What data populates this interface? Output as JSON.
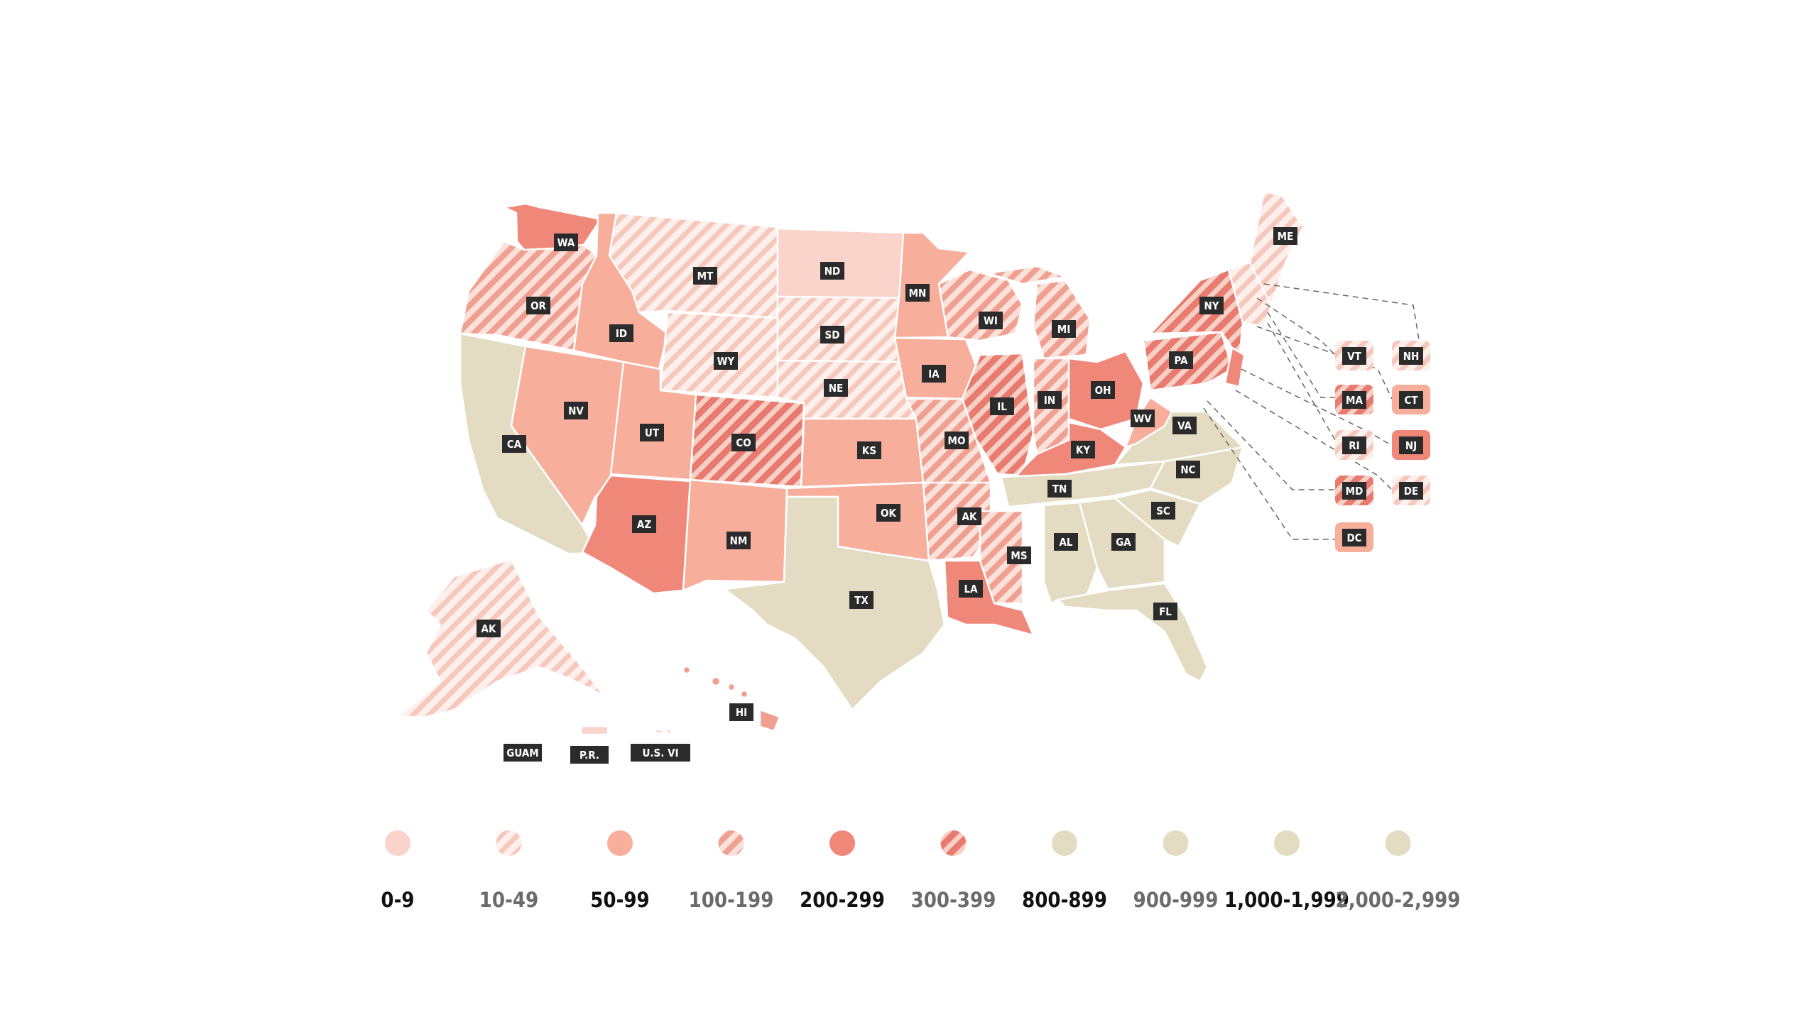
{
  "colors": {
    "bin_0_9": "#fad3ca",
    "bin_50_99": "#f7ae9b",
    "bin_200_299": "#f0887a",
    "tan": "#e4dcc2",
    "stripe_light": "#f6c7bb",
    "stripe_mid": "#f0a090",
    "stripe_dark": "#e87b6d",
    "label_bg": "#2b2b2b",
    "label_text": "#ffffff",
    "dash_line": "#666666"
  },
  "legend": [
    {
      "label": "0-9",
      "fill": "bin_0_9",
      "text_color": "#111111"
    },
    {
      "label": "10-49",
      "fill": "stripe_light",
      "text_color": "#6b6b6b"
    },
    {
      "label": "50-99",
      "fill": "bin_50_99",
      "text_color": "#111111"
    },
    {
      "label": "100-199",
      "fill": "stripe_mid",
      "text_color": "#6b6b6b"
    },
    {
      "label": "200-299",
      "fill": "bin_200_299",
      "text_color": "#111111"
    },
    {
      "label": "300-399",
      "fill": "stripe_dark",
      "text_color": "#6b6b6b"
    },
    {
      "label": "800-899",
      "fill": "tan",
      "text_color": "#111111"
    },
    {
      "label": "900-999",
      "fill": "tan",
      "text_color": "#6b6b6b"
    },
    {
      "label": "1,000-1,999",
      "fill": "tan",
      "text_color": "#111111"
    },
    {
      "label": "2,000-2,999",
      "fill": "tan",
      "text_color": "#6b6b6b"
    }
  ],
  "states": [
    {
      "code": "WA",
      "category": "200-299"
    },
    {
      "code": "OR",
      "category": "100-199"
    },
    {
      "code": "CA",
      "category": "tan"
    },
    {
      "code": "NV",
      "category": "50-99"
    },
    {
      "code": "ID",
      "category": "50-99"
    },
    {
      "code": "MT",
      "category": "10-49"
    },
    {
      "code": "WY",
      "category": "10-49"
    },
    {
      "code": "UT",
      "category": "50-99"
    },
    {
      "code": "AZ",
      "category": "200-299"
    },
    {
      "code": "CO",
      "category": "300-399"
    },
    {
      "code": "NM",
      "category": "50-99"
    },
    {
      "code": "ND",
      "category": "0-9"
    },
    {
      "code": "SD",
      "category": "10-49"
    },
    {
      "code": "NE",
      "category": "10-49"
    },
    {
      "code": "KS",
      "category": "50-99"
    },
    {
      "code": "OK",
      "category": "50-99"
    },
    {
      "code": "TX",
      "category": "tan"
    },
    {
      "code": "MN",
      "category": "50-99"
    },
    {
      "code": "IA",
      "category": "50-99"
    },
    {
      "code": "MO",
      "category": "100-199"
    },
    {
      "code": "AK",
      "category": "100-199"
    },
    {
      "code": "LA",
      "category": "200-299"
    },
    {
      "code": "WI",
      "category": "100-199"
    },
    {
      "code": "IL",
      "category": "300-399"
    },
    {
      "code": "MI",
      "category": "100-199"
    },
    {
      "code": "IN",
      "category": "100-199"
    },
    {
      "code": "OH",
      "category": "200-299"
    },
    {
      "code": "KY",
      "category": "200-299"
    },
    {
      "code": "TN",
      "category": "tan"
    },
    {
      "code": "MS",
      "category": "100-199"
    },
    {
      "code": "AL",
      "category": "tan"
    },
    {
      "code": "GA",
      "category": "tan"
    },
    {
      "code": "FL",
      "category": "tan"
    },
    {
      "code": "SC",
      "category": "tan"
    },
    {
      "code": "NC",
      "category": "tan"
    },
    {
      "code": "VA",
      "category": "tan"
    },
    {
      "code": "WV",
      "category": "50-99"
    },
    {
      "code": "PA",
      "category": "300-399"
    },
    {
      "code": "NY",
      "category": "300-399"
    },
    {
      "code": "ME",
      "category": "10-49"
    },
    {
      "code": "AK",
      "category": "10-49"
    },
    {
      "code": "HI",
      "category": "50-99"
    },
    {
      "code": "GUAM",
      "category": "none"
    },
    {
      "code": "P.R.",
      "category": "0-9"
    },
    {
      "code": "U.S. VI",
      "category": "0-9"
    }
  ],
  "northeast_boxes": [
    {
      "code": "VT",
      "category": "10-49"
    },
    {
      "code": "NH",
      "category": "10-49"
    },
    {
      "code": "MA",
      "category": "300-399"
    },
    {
      "code": "CT",
      "category": "50-99"
    },
    {
      "code": "RI",
      "category": "10-49"
    },
    {
      "code": "NJ",
      "category": "200-299"
    },
    {
      "code": "MD",
      "category": "300-399"
    },
    {
      "code": "DE",
      "category": "10-49"
    },
    {
      "code": "DC",
      "category": "50-99"
    }
  ]
}
